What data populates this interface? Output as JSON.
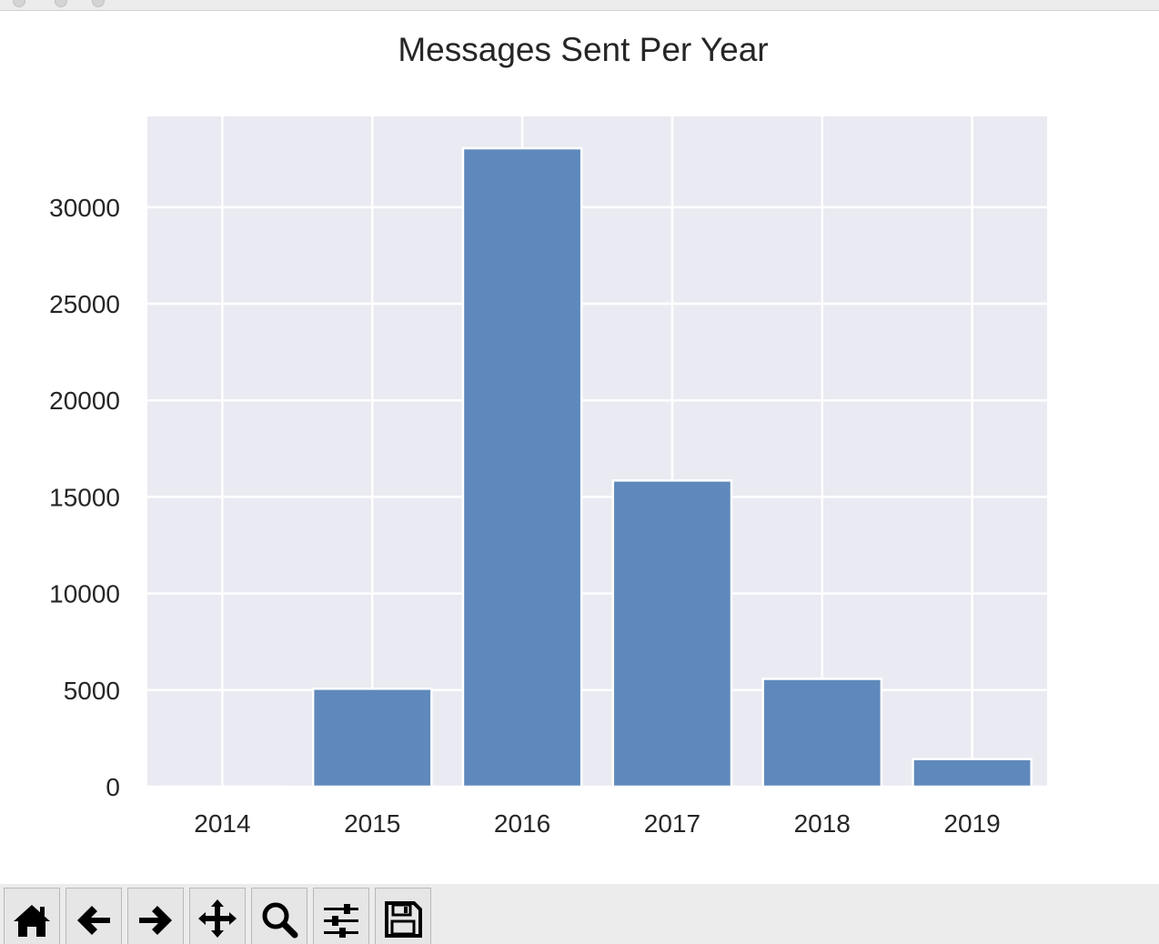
{
  "window": {
    "title": ""
  },
  "chart_data": {
    "type": "bar",
    "title": "Messages Sent Per Year",
    "xlabel": "",
    "ylabel": "",
    "categories": [
      "2014",
      "2015",
      "2016",
      "2017",
      "2018",
      "2019"
    ],
    "values": [
      5,
      5070,
      33050,
      15850,
      5580,
      1430
    ],
    "yticks": [
      0,
      5000,
      10000,
      15000,
      20000,
      25000,
      30000
    ],
    "ylim": [
      0,
      34700
    ],
    "grid": true,
    "bar_color": "#5f89bc",
    "plot_background": "#eaeaf2",
    "grid_color": "#ffffff"
  },
  "toolbar": {
    "buttons": [
      {
        "name": "home-button",
        "icon": "home-icon"
      },
      {
        "name": "back-button",
        "icon": "arrow-left-icon"
      },
      {
        "name": "forward-button",
        "icon": "arrow-right-icon"
      },
      {
        "name": "pan-button",
        "icon": "move-icon"
      },
      {
        "name": "zoom-button",
        "icon": "magnifier-icon"
      },
      {
        "name": "configure-subplots-button",
        "icon": "sliders-icon"
      },
      {
        "name": "save-button",
        "icon": "floppy-disk-icon"
      }
    ]
  }
}
